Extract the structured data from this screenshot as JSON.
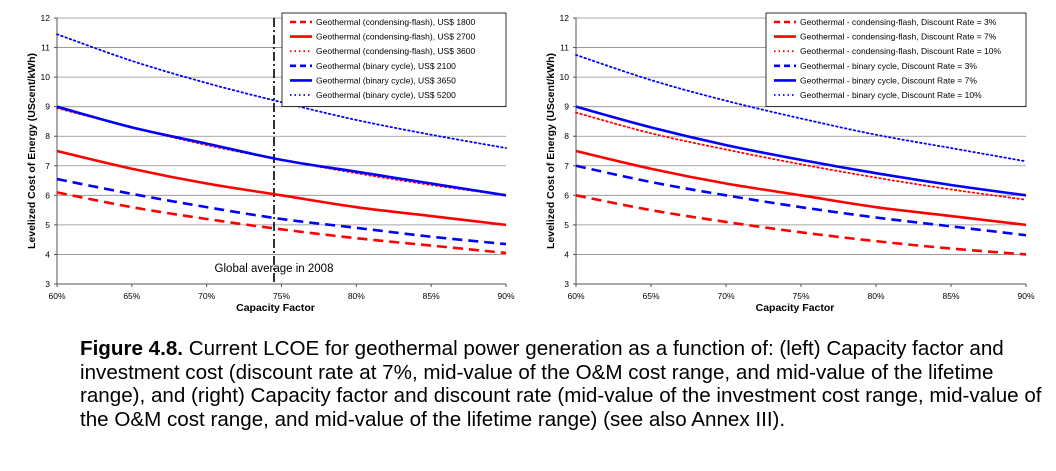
{
  "caption": {
    "label": "Figure 4.8.",
    "text": "Current LCOE for geothermal power generation as a function of: (left) Capacity factor and investment cost (discount rate at 7%, mid-value of the O&M cost range, and mid-value of the lifetime range), and (right) Capacity factor and discount rate (mid-value of the investment cost range, mid-value of the O&M cost range, and mid-value of the lifetime range) (see also Annex III)."
  },
  "colors": {
    "red": "#ff0000",
    "blue": "#0000ff",
    "grid": "#8c8c8c"
  },
  "chart_data": [
    {
      "type": "line",
      "title": "",
      "xlabel": "Capacity Factor",
      "ylabel": "Levelized Cost of Energy (UScent/kWh)",
      "xlim": [
        60,
        90
      ],
      "ylim": [
        3,
        12
      ],
      "xticks": [
        "60%",
        "65%",
        "70%",
        "75%",
        "80%",
        "85%",
        "90%"
      ],
      "yticks": [
        "3",
        "4",
        "5",
        "6",
        "7",
        "8",
        "9",
        "10",
        "11",
        "12"
      ],
      "grid": true,
      "legend_position": "top-right",
      "annotation": {
        "text": "Global average in 2008",
        "x": 74.5
      },
      "x": [
        60,
        65,
        70,
        75,
        80,
        85,
        90
      ],
      "series": [
        {
          "name": "Geothermal (condensing-flash), US$ 1800",
          "color": "red",
          "dash": "dashed",
          "values": [
            6.1,
            5.6,
            5.2,
            4.85,
            4.55,
            4.3,
            4.05
          ]
        },
        {
          "name": "Geothermal (condensing-flash), US$ 2700",
          "color": "red",
          "dash": "solid",
          "values": [
            7.5,
            6.9,
            6.4,
            6.0,
            5.6,
            5.3,
            5.0
          ]
        },
        {
          "name": "Geothermal (condensing-flash), US$ 3600",
          "color": "red",
          "dash": "dotted",
          "values": [
            8.95,
            8.3,
            7.7,
            7.2,
            6.75,
            6.35,
            6.0
          ]
        },
        {
          "name": "Geothermal (binary cycle), US$ 2100",
          "color": "blue",
          "dash": "dashed",
          "values": [
            6.55,
            6.05,
            5.6,
            5.2,
            4.9,
            4.6,
            4.35
          ]
        },
        {
          "name": "Geothermal (binary cycle), US$ 3650",
          "color": "blue",
          "dash": "solid",
          "values": [
            9.0,
            8.3,
            7.75,
            7.2,
            6.8,
            6.4,
            6.0
          ]
        },
        {
          "name": "Geothermal (binary cycle), US$ 5200",
          "color": "blue",
          "dash": "dotted",
          "values": [
            11.45,
            10.55,
            9.8,
            9.15,
            8.55,
            8.05,
            7.6
          ]
        }
      ]
    },
    {
      "type": "line",
      "title": "",
      "xlabel": "Capacity Factor",
      "ylabel": "Levelized Cost of Energy (UScent/kWh)",
      "xlim": [
        60,
        90
      ],
      "ylim": [
        3,
        12
      ],
      "xticks": [
        "60%",
        "65%",
        "70%",
        "75%",
        "80%",
        "85%",
        "90%"
      ],
      "yticks": [
        "3",
        "4",
        "5",
        "6",
        "7",
        "8",
        "9",
        "10",
        "11",
        "12"
      ],
      "grid": true,
      "legend_position": "top-right",
      "x": [
        60,
        65,
        70,
        75,
        80,
        85,
        90
      ],
      "series": [
        {
          "name": "Geothermal - condensing-flash, Discount Rate = 3%",
          "color": "red",
          "dash": "dashed",
          "values": [
            6.0,
            5.5,
            5.1,
            4.75,
            4.45,
            4.2,
            4.0
          ]
        },
        {
          "name": "Geothermal - condensing-flash, Discount Rate = 7%",
          "color": "red",
          "dash": "solid",
          "values": [
            7.5,
            6.9,
            6.4,
            6.0,
            5.6,
            5.3,
            5.0
          ]
        },
        {
          "name": "Geothermal - condensing-flash, Discount Rate = 10%",
          "color": "red",
          "dash": "dotted",
          "values": [
            8.8,
            8.1,
            7.55,
            7.05,
            6.6,
            6.2,
            5.85
          ]
        },
        {
          "name": "Geothermal - binary cycle, Discount Rate = 3%",
          "color": "blue",
          "dash": "dashed",
          "values": [
            7.0,
            6.45,
            6.0,
            5.6,
            5.25,
            4.95,
            4.65
          ]
        },
        {
          "name": "Geothermal - binary cycle, Discount Rate = 7%",
          "color": "blue",
          "dash": "solid",
          "values": [
            9.0,
            8.3,
            7.7,
            7.2,
            6.75,
            6.35,
            6.0
          ]
        },
        {
          "name": "Geothermal - binary cycle, Discount Rate = 10%",
          "color": "blue",
          "dash": "dotted",
          "values": [
            10.75,
            9.9,
            9.2,
            8.6,
            8.05,
            7.6,
            7.15
          ]
        }
      ]
    }
  ]
}
